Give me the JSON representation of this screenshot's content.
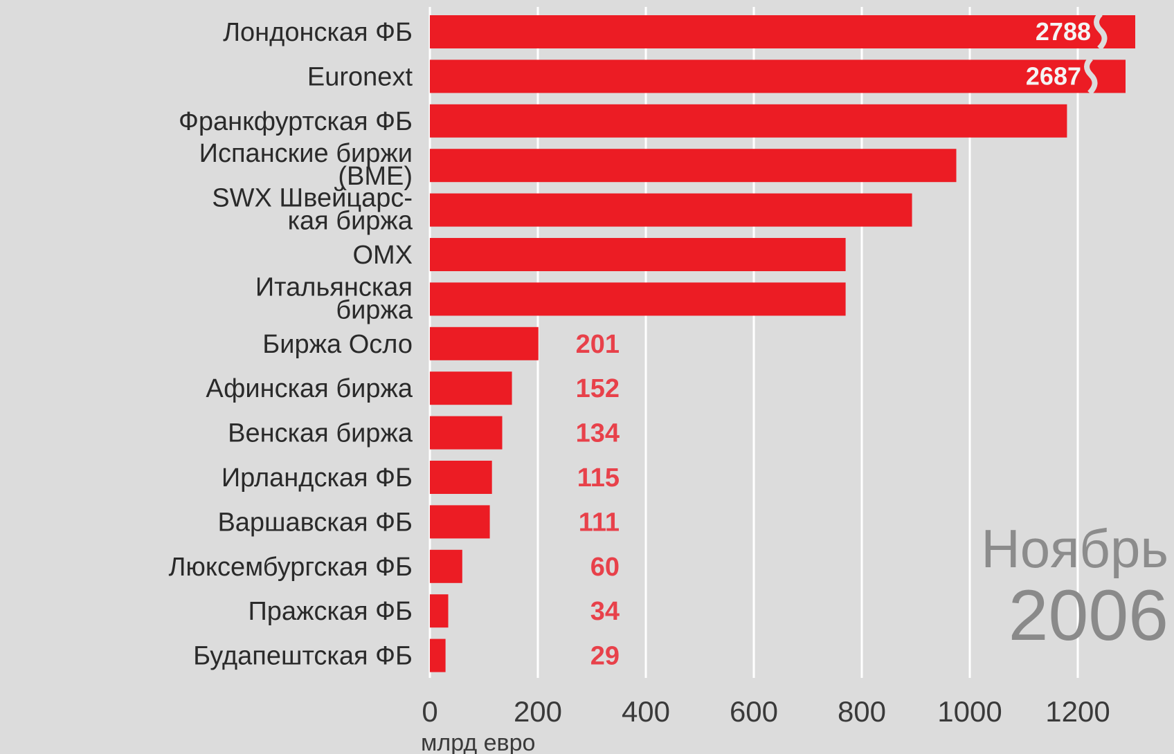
{
  "chart_data": {
    "type": "bar",
    "orientation": "horizontal",
    "categories": [
      "Лондонская ФБ",
      "Euronext",
      "Франкфуртская ФБ",
      "Испанские биржи (BME)",
      "SWX Швейцарс-кая биржа",
      "OMX",
      "Итальянская биржа",
      "Биржа Осло",
      "Афинская биржа",
      "Венская биржа",
      "Ирландская ФБ",
      "Варшавская ФБ",
      "Люксембургская ФБ",
      "Пражская ФБ",
      "Будапештская ФБ"
    ],
    "category_lines": [
      [
        "Лондонская ФБ"
      ],
      [
        "Euronext"
      ],
      [
        "Франкфуртская ФБ"
      ],
      [
        "Испанские биржи",
        "(BME)"
      ],
      [
        "SWX Швейцарс-",
        "кая биржа"
      ],
      [
        "OMX"
      ],
      [
        "Итальянская",
        "биржа"
      ],
      [
        "Биржа Осло"
      ],
      [
        "Афинская биржа"
      ],
      [
        "Венская биржа"
      ],
      [
        "Ирландская ФБ"
      ],
      [
        "Варшавская ФБ"
      ],
      [
        "Люксембургская ФБ"
      ],
      [
        "Пражская ФБ"
      ],
      [
        "Будапештская ФБ"
      ]
    ],
    "values": [
      2788,
      2687,
      1180,
      975,
      893,
      770,
      770,
      201,
      152,
      134,
      115,
      111,
      60,
      34,
      29
    ],
    "value_labels": [
      "2788",
      "2687",
      "",
      "",
      "",
      "",
      "",
      "201",
      "152",
      "134",
      "115",
      "111",
      "60",
      "34",
      "29"
    ],
    "axis_breaks": [
      true,
      true,
      false,
      false,
      false,
      false,
      false,
      false,
      false,
      false,
      false,
      false,
      false,
      false,
      false
    ],
    "xlim": [
      0,
      1200
    ],
    "xticks": [
      "0",
      "200",
      "400",
      "600",
      "800",
      "1000",
      "1200"
    ],
    "xlabel": "млрд евро",
    "grid": true,
    "annotation": {
      "month": "Ноябрь",
      "year": "2006"
    },
    "colors": {
      "bar": "#ec1c24",
      "background": "#dcdcdc",
      "grid": "#ffffff",
      "outside_label": "#e8414a",
      "inside_label": "#f4f4f4"
    }
  }
}
